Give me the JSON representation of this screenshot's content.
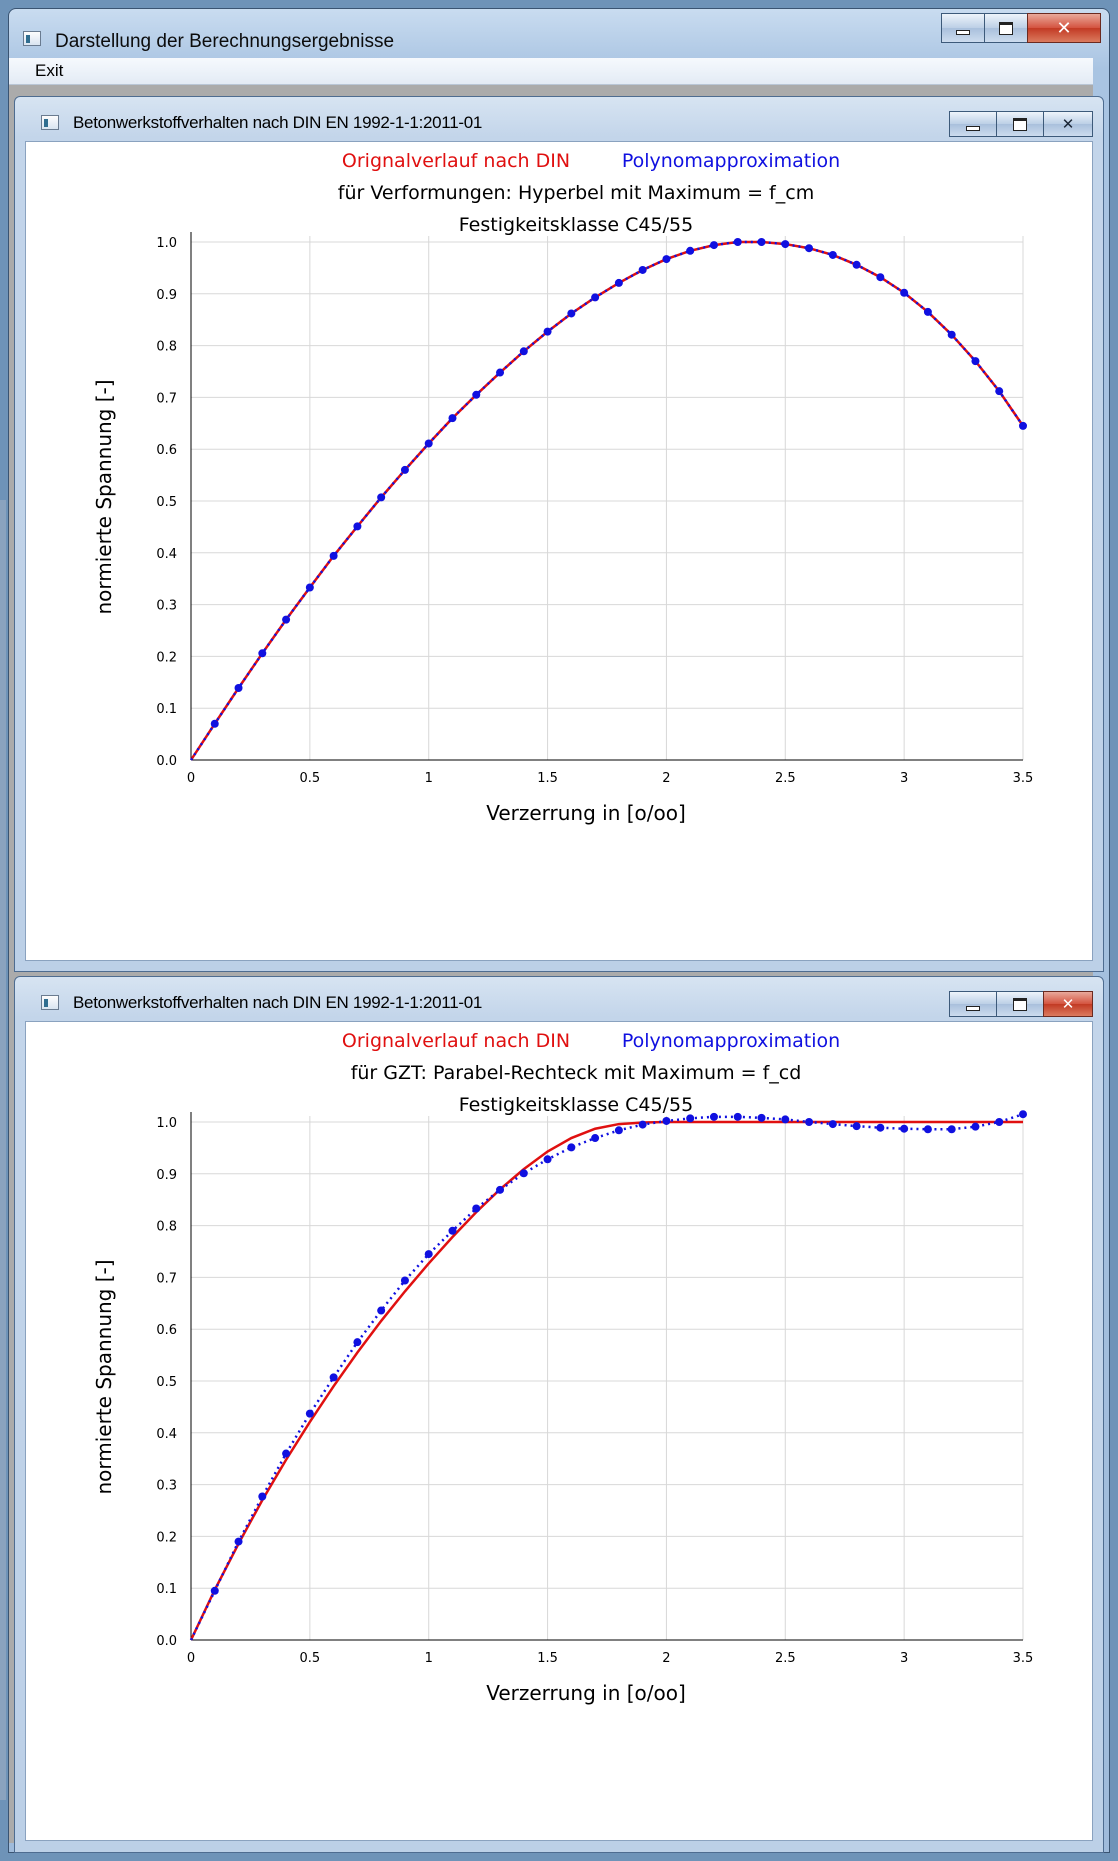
{
  "window": {
    "title": "Darstellung der Berechnungsergebnisse",
    "menu": {
      "exit": "Exit"
    }
  },
  "charts": [
    {
      "window_title": "Betonwerkstoffverhalten nach DIN EN 1992-1-1:2011-01",
      "legend_red": "Orignalverlauf nach DIN",
      "legend_blue": "Polynomapproximation",
      "subtitle": "für Verformungen: Hyperbel mit Maximum = f_cm",
      "class_label": "Festigkeitsklasse C45/55",
      "xlabel": "Verzerrung in [o/oo]",
      "ylabel": "normierte Spannung [-]",
      "x_ticks": [
        "0",
        "0.5",
        "1",
        "1.5",
        "2",
        "2.5",
        "3",
        "3.5"
      ],
      "y_ticks": [
        "0.0",
        "0.1",
        "0.2",
        "0.3",
        "0.4",
        "0.5",
        "0.6",
        "0.7",
        "0.8",
        "0.9",
        "1.0"
      ],
      "close_active": false
    },
    {
      "window_title": "Betonwerkstoffverhalten nach DIN EN 1992-1-1:2011-01",
      "legend_red": "Orignalverlauf nach DIN",
      "legend_blue": "Polynomapproximation",
      "subtitle": "für GZT: Parabel-Rechteck mit Maximum = f_cd",
      "class_label": "Festigkeitsklasse C45/55",
      "xlabel": "Verzerrung in [o/oo]",
      "ylabel": "normierte Spannung [-]",
      "x_ticks": [
        "0",
        "0.5",
        "1",
        "1.5",
        "2",
        "2.5",
        "3",
        "3.5"
      ],
      "y_ticks": [
        "0.0",
        "0.1",
        "0.2",
        "0.3",
        "0.4",
        "0.5",
        "0.6",
        "0.7",
        "0.8",
        "0.9",
        "1.0"
      ],
      "close_active": true
    }
  ],
  "colors": {
    "original": "#e01010",
    "polynomial": "#1010e0",
    "grid": "#d8d8d8"
  },
  "chart_data": [
    {
      "type": "line",
      "title": "Festigkeitsklasse C45/55",
      "xlabel": "Verzerrung in [o/oo]",
      "ylabel": "normierte Spannung [-]",
      "xlim": [
        0,
        3.5
      ],
      "ylim": [
        0,
        1.0
      ],
      "grid": true,
      "series": [
        {
          "name": "Orignalverlauf nach DIN",
          "style": "solid",
          "x": [
            0,
            0.1,
            0.2,
            0.3,
            0.4,
            0.5,
            0.6,
            0.7,
            0.8,
            0.9,
            1.0,
            1.1,
            1.2,
            1.3,
            1.4,
            1.5,
            1.6,
            1.7,
            1.8,
            1.9,
            2.0,
            2.1,
            2.2,
            2.3,
            2.4,
            2.5,
            2.6,
            2.7,
            2.8,
            2.9,
            3.0,
            3.1,
            3.2,
            3.3,
            3.4,
            3.5
          ],
          "y": [
            0,
            0.07,
            0.139,
            0.206,
            0.271,
            0.333,
            0.394,
            0.451,
            0.507,
            0.56,
            0.611,
            0.66,
            0.705,
            0.748,
            0.789,
            0.827,
            0.862,
            0.893,
            0.921,
            0.946,
            0.967,
            0.983,
            0.994,
            1.0,
            1.0,
            0.996,
            0.988,
            0.975,
            0.956,
            0.932,
            0.902,
            0.865,
            0.821,
            0.77,
            0.712,
            0.645
          ]
        },
        {
          "name": "Polynomapproximation",
          "style": "dotted-markers",
          "x": [
            0,
            0.1,
            0.2,
            0.3,
            0.4,
            0.5,
            0.6,
            0.7,
            0.8,
            0.9,
            1.0,
            1.1,
            1.2,
            1.3,
            1.4,
            1.5,
            1.6,
            1.7,
            1.8,
            1.9,
            2.0,
            2.1,
            2.2,
            2.3,
            2.4,
            2.5,
            2.6,
            2.7,
            2.8,
            2.9,
            3.0,
            3.1,
            3.2,
            3.3,
            3.4,
            3.5
          ],
          "y": [
            0,
            0.07,
            0.139,
            0.206,
            0.271,
            0.333,
            0.394,
            0.451,
            0.507,
            0.56,
            0.611,
            0.66,
            0.705,
            0.748,
            0.789,
            0.827,
            0.862,
            0.893,
            0.921,
            0.946,
            0.967,
            0.983,
            0.994,
            1.0,
            1.0,
            0.996,
            0.988,
            0.975,
            0.956,
            0.932,
            0.902,
            0.865,
            0.821,
            0.77,
            0.712,
            0.645
          ]
        }
      ]
    },
    {
      "type": "line",
      "title": "Festigkeitsklasse C45/55",
      "xlabel": "Verzerrung in [o/oo]",
      "ylabel": "normierte Spannung [-]",
      "xlim": [
        0,
        3.5
      ],
      "ylim": [
        0,
        1.0
      ],
      "grid": true,
      "series": [
        {
          "name": "Orignalverlauf nach DIN",
          "style": "solid",
          "x": [
            0,
            0.1,
            0.2,
            0.3,
            0.4,
            0.5,
            0.6,
            0.7,
            0.8,
            0.9,
            1.0,
            1.1,
            1.2,
            1.3,
            1.4,
            1.5,
            1.6,
            1.7,
            1.8,
            1.9,
            2.0,
            2.5,
            3.0,
            3.5
          ],
          "y": [
            0,
            0.097,
            0.186,
            0.27,
            0.348,
            0.421,
            0.49,
            0.555,
            0.616,
            0.673,
            0.727,
            0.778,
            0.826,
            0.87,
            0.909,
            0.943,
            0.969,
            0.987,
            0.996,
            0.999,
            1.0,
            1.0,
            1.0,
            1.0
          ]
        },
        {
          "name": "Polynomapproximation",
          "style": "dotted-markers",
          "x": [
            0,
            0.1,
            0.2,
            0.3,
            0.4,
            0.5,
            0.6,
            0.7,
            0.8,
            0.9,
            1.0,
            1.1,
            1.2,
            1.3,
            1.4,
            1.5,
            1.6,
            1.7,
            1.8,
            1.9,
            2.0,
            2.1,
            2.2,
            2.3,
            2.4,
            2.5,
            2.6,
            2.7,
            2.8,
            2.9,
            3.0,
            3.1,
            3.2,
            3.3,
            3.4,
            3.5
          ],
          "y": [
            0,
            0.095,
            0.19,
            0.277,
            0.36,
            0.437,
            0.507,
            0.575,
            0.636,
            0.694,
            0.745,
            0.79,
            0.833,
            0.869,
            0.901,
            0.928,
            0.951,
            0.969,
            0.984,
            0.995,
            1.002,
            1.007,
            1.01,
            1.01,
            1.008,
            1.005,
            1.0,
            0.996,
            0.992,
            0.989,
            0.987,
            0.986,
            0.986,
            0.991,
            1.0,
            1.015
          ]
        }
      ]
    }
  ]
}
